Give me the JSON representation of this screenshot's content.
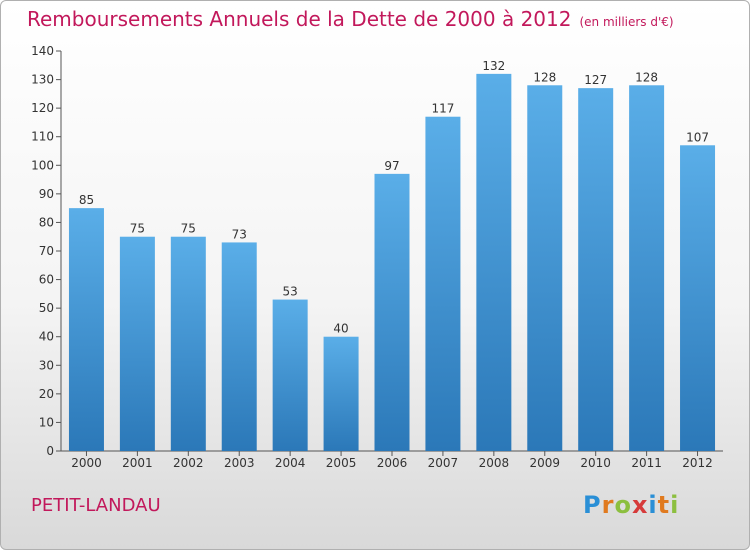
{
  "title": "Remboursements Annuels de la Dette de 2000 à 2012",
  "subtitle": "(en milliers d'€)",
  "place": "PETIT-LANDAU",
  "logo": {
    "text": "Proxiti",
    "colors": [
      "#2a8fd6",
      "#e07a1f",
      "#8cbf3f",
      "#d63a3a",
      "#2a8fd6",
      "#e07a1f",
      "#8cbf3f"
    ]
  },
  "colors": {
    "title": "#c2185b",
    "bar_light": "#5aaee8",
    "bar_dark": "#2b78b8"
  },
  "chart_data": {
    "type": "bar",
    "categories": [
      "2000",
      "2001",
      "2002",
      "2003",
      "2004",
      "2005",
      "2006",
      "2007",
      "2008",
      "2009",
      "2010",
      "2011",
      "2012"
    ],
    "values": [
      85,
      75,
      75,
      73,
      53,
      40,
      97,
      117,
      132,
      128,
      127,
      128,
      107
    ],
    "ylim": [
      0,
      140
    ],
    "yticks": [
      0,
      10,
      20,
      30,
      40,
      50,
      60,
      70,
      80,
      90,
      100,
      110,
      120,
      130,
      140
    ],
    "grid": false,
    "data_labels": true
  }
}
